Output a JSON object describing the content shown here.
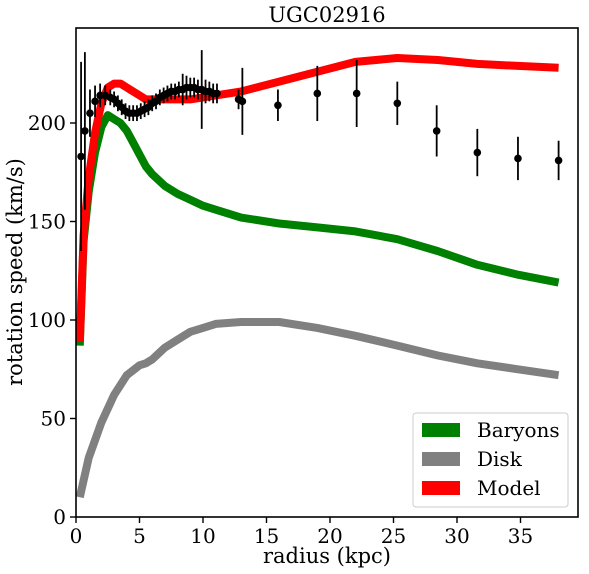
{
  "chart_data": {
    "type": "line",
    "title": "UGC02916",
    "xlabel": "radius (kpc)",
    "ylabel": "rotation speed (km/s)",
    "xlim": [
      0,
      40
    ],
    "ylim": [
      0,
      250
    ],
    "xticks": [
      0,
      5,
      10,
      15,
      20,
      25,
      30,
      35
    ],
    "yticks": [
      0,
      50,
      100,
      150,
      200
    ],
    "grid": false,
    "legend_position": "bottom-right",
    "legend": [
      {
        "label": "Baryons",
        "color": "#008000"
      },
      {
        "label": "Disk",
        "color": "#808080"
      },
      {
        "label": "Model",
        "color": "#ff0000"
      }
    ],
    "series": [
      {
        "name": "Baryons",
        "color": "#008000",
        "x": [
          0.3,
          0.6,
          1.0,
          1.5,
          2.0,
          2.5,
          3.0,
          3.5,
          4.0,
          4.5,
          5.0,
          5.5,
          6.0,
          7.0,
          8.0,
          9.0,
          10.0,
          11.0,
          13.0,
          16.0,
          19.0,
          22.0,
          25.3,
          28.5,
          31.6,
          34.8,
          38.0
        ],
        "y": [
          87,
          140,
          165,
          185,
          198,
          204,
          202,
          200,
          196,
          190,
          184,
          178,
          174,
          168,
          164,
          161,
          158,
          156,
          152,
          149,
          147,
          145,
          141,
          135,
          128,
          123,
          119
        ]
      },
      {
        "name": "Disk",
        "color": "#808080",
        "x": [
          0.3,
          1.0,
          2.0,
          3.0,
          4.0,
          5.0,
          5.5,
          6.0,
          7.0,
          8.0,
          9.0,
          10.0,
          11.0,
          13.0,
          16.0,
          19.0,
          22.0,
          25.3,
          28.5,
          31.6,
          34.8,
          38.0
        ],
        "y": [
          10,
          30,
          48,
          62,
          72,
          77,
          78,
          80,
          86,
          90,
          94,
          96,
          98,
          99,
          99,
          96,
          92,
          87,
          82,
          78,
          75,
          72
        ]
      },
      {
        "name": "Model",
        "color": "#ff0000",
        "x": [
          0.3,
          0.6,
          1.0,
          1.5,
          2.0,
          2.5,
          3.0,
          3.5,
          4.0,
          4.5,
          5.0,
          5.5,
          6.0,
          7.0,
          8.0,
          9.0,
          10.0,
          11.0,
          13.0,
          16.0,
          19.0,
          22.0,
          25.3,
          28.5,
          31.6,
          34.8,
          38.0
        ],
        "y": [
          89,
          143,
          172,
          195,
          210,
          218,
          220,
          220,
          218,
          216,
          214,
          212,
          212,
          212,
          212,
          212,
          213,
          214,
          216,
          221,
          226,
          231,
          233,
          232,
          230,
          229,
          228
        ]
      }
    ],
    "observed": {
      "x": [
        0.4,
        0.7,
        1.1,
        1.5,
        1.9,
        2.3,
        2.7,
        3.0,
        3.3,
        3.6,
        3.9,
        4.2,
        4.5,
        4.8,
        5.1,
        5.4,
        5.7,
        6.0,
        6.3,
        6.6,
        6.9,
        7.2,
        7.5,
        7.8,
        8.1,
        8.4,
        8.7,
        9.0,
        9.3,
        9.6,
        9.9,
        10.2,
        10.5,
        10.8,
        11.1,
        12.8,
        13.1,
        15.9,
        19.0,
        22.1,
        25.3,
        28.4,
        31.6,
        34.8,
        38.0
      ],
      "y": [
        183,
        196,
        205,
        211,
        214,
        214,
        213,
        212,
        210,
        208,
        206,
        205,
        205,
        205,
        206,
        207,
        208,
        210,
        211,
        213,
        214,
        215,
        216,
        216,
        217,
        217,
        218,
        218,
        218,
        217,
        217,
        216,
        216,
        215,
        215,
        212,
        211,
        209,
        215,
        215,
        210,
        196,
        185,
        182,
        181
      ],
      "err": [
        48,
        40,
        12,
        8,
        6,
        5,
        4,
        4,
        4,
        4,
        4,
        4,
        4,
        4,
        4,
        4,
        4,
        4,
        4,
        4,
        4,
        4,
        4,
        4,
        4,
        8,
        6,
        5,
        5,
        5,
        20,
        6,
        5,
        5,
        5,
        5,
        17,
        8,
        14,
        17,
        11,
        13,
        12,
        11,
        10
      ]
    }
  }
}
